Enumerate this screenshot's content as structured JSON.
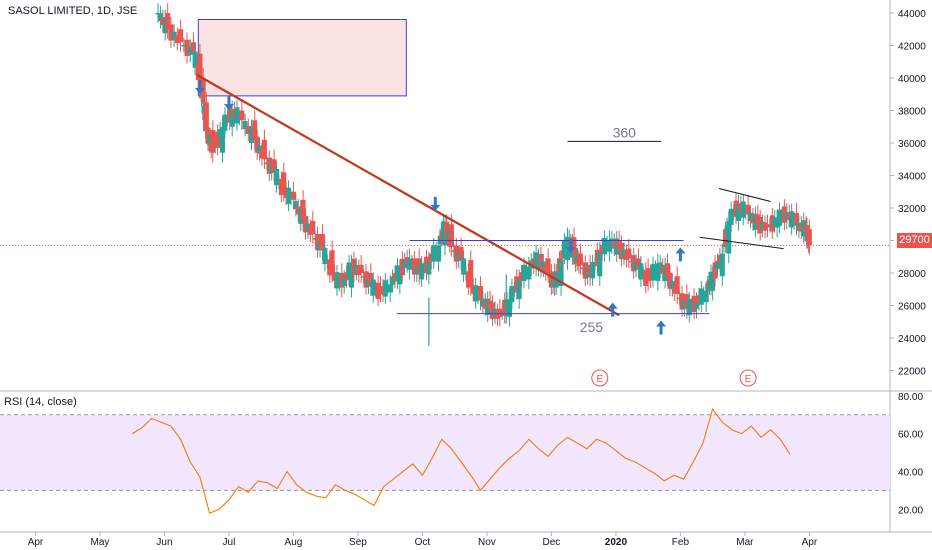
{
  "chart_title": "SASOL LIMITED, 1D, JSE",
  "rsi_title": "RSI (14, close)",
  "last_price_label": "29700",
  "annotations": {
    "target_high": "360",
    "support_low": "255",
    "earnings_marker": "E"
  },
  "colors": {
    "up": "#26a69a",
    "down": "#ef5350",
    "trendline": "#c0391b",
    "level_line": "#3f3fd6",
    "arrow": "#2f78c4",
    "rsi_line": "#f57c00",
    "rsi_band": "#f3e6ff",
    "zone_fill": "#fbe3e3"
  },
  "chart_data": [
    {
      "type": "candlestick",
      "title": "SASOL LIMITED, 1D, JSE",
      "x_ticks": [
        "Apr",
        "May",
        "Jun",
        "Jul",
        "Aug",
        "Sep",
        "Oct",
        "Nov",
        "Dec",
        "2020",
        "Feb",
        "Mar",
        "Apr"
      ],
      "y_ticks": [
        22000,
        24000,
        26000,
        28000,
        30000,
        32000,
        34000,
        36000,
        38000,
        40000,
        42000,
        44000
      ],
      "ylim": [
        20800,
        44800
      ],
      "last_price": 29700,
      "price_path": [
        [
          3.8,
          44000
        ],
        [
          4.1,
          43000
        ],
        [
          4.5,
          42200
        ],
        [
          4.9,
          41500
        ],
        [
          5.1,
          40000
        ],
        [
          5.2,
          38500
        ],
        [
          5.3,
          36800
        ],
        [
          5.5,
          35400
        ],
        [
          5.8,
          37000
        ],
        [
          6.1,
          38000
        ],
        [
          6.4,
          37400
        ],
        [
          6.8,
          36200
        ],
        [
          7.1,
          35000
        ],
        [
          7.4,
          34200
        ],
        [
          7.7,
          33000
        ],
        [
          8.0,
          32500
        ],
        [
          8.3,
          31200
        ],
        [
          8.6,
          30400
        ],
        [
          8.9,
          29400
        ],
        [
          9.2,
          28000
        ],
        [
          9.5,
          27100
        ],
        [
          9.8,
          28500
        ],
        [
          10.1,
          28000
        ],
        [
          10.4,
          27200
        ],
        [
          10.7,
          26800
        ],
        [
          11.0,
          27300
        ],
        [
          11.3,
          28200
        ],
        [
          11.6,
          28900
        ],
        [
          11.9,
          27900
        ],
        [
          12.2,
          28700
        ],
        [
          12.5,
          29700
        ],
        [
          12.7,
          31000
        ],
        [
          12.9,
          29600
        ],
        [
          13.2,
          28800
        ],
        [
          13.5,
          27200
        ],
        [
          13.8,
          26300
        ],
        [
          14.1,
          25800
        ],
        [
          14.4,
          25300
        ],
        [
          14.7,
          26400
        ],
        [
          15.0,
          27600
        ],
        [
          15.3,
          28400
        ],
        [
          15.6,
          28900
        ],
        [
          15.9,
          28000
        ],
        [
          16.1,
          27200
        ],
        [
          16.3,
          28800
        ],
        [
          16.5,
          30200
        ],
        [
          16.7,
          29200
        ],
        [
          16.9,
          28500
        ],
        [
          17.2,
          27800
        ],
        [
          17.5,
          29300
        ],
        [
          17.8,
          30000
        ],
        [
          18.1,
          29500
        ],
        [
          18.4,
          28900
        ],
        [
          18.7,
          28300
        ],
        [
          19.0,
          27500
        ],
        [
          19.3,
          28600
        ],
        [
          19.6,
          27800
        ],
        [
          19.9,
          26700
        ],
        [
          20.2,
          25800
        ],
        [
          20.5,
          26200
        ],
        [
          20.8,
          26900
        ],
        [
          21.0,
          27800
        ],
        [
          21.3,
          29200
        ],
        [
          21.5,
          31200
        ],
        [
          21.8,
          32200
        ],
        [
          22.1,
          31600
        ],
        [
          22.4,
          31000
        ],
        [
          22.7,
          30800
        ],
        [
          23.0,
          31300
        ],
        [
          23.3,
          31700
        ],
        [
          23.6,
          30900
        ],
        [
          23.9,
          30700
        ],
        [
          24.0,
          29700
        ]
      ],
      "lows": [
        {
          "x": 12.2,
          "value": 23500
        },
        {
          "x": 14.6,
          "value": 24900
        }
      ],
      "annotations": [
        {
          "kind": "zone",
          "x": [
            5.05,
            11.5
          ],
          "y": [
            38900,
            43600
          ]
        },
        {
          "kind": "trendline",
          "from": [
            5.0,
            40200
          ],
          "to": [
            18.1,
            25400
          ]
        },
        {
          "kind": "level",
          "x": [
            11.6,
            20.1
          ],
          "y": 30000
        },
        {
          "kind": "level",
          "x": [
            11.2,
            20.9
          ],
          "y": 25500
        },
        {
          "kind": "level",
          "x": [
            16.5,
            19.4
          ],
          "y": 36100,
          "label": "360"
        },
        {
          "kind": "label",
          "x": [
            15.0,
            17.0
          ],
          "y": 25100,
          "text": "255"
        },
        {
          "kind": "channel",
          "from": [
            21.2,
            33200
          ],
          "to": [
            22.8,
            32400
          ]
        },
        {
          "kind": "channel",
          "from": [
            20.6,
            30200
          ],
          "to": [
            23.2,
            29500
          ]
        },
        {
          "kind": "last_price_line",
          "y": 29700
        }
      ],
      "markers": [
        {
          "type": "down-arrow",
          "x": 5.1,
          "y": 38900
        },
        {
          "type": "down-arrow",
          "x": 6.0,
          "y": 37900
        },
        {
          "type": "down-arrow",
          "x": 12.4,
          "y": 31700
        },
        {
          "type": "down-arrow",
          "x": 16.6,
          "y": 29100
        },
        {
          "type": "up-arrow",
          "x": 17.9,
          "y": 26300
        },
        {
          "type": "up-arrow",
          "x": 19.4,
          "y": 25200
        },
        {
          "type": "up-arrow",
          "x": 20.0,
          "y": 29700
        },
        {
          "type": "earnings",
          "x": 17.5
        },
        {
          "type": "earnings",
          "x": 22.1
        }
      ]
    },
    {
      "type": "line",
      "title": "RSI (14, close)",
      "y_ticks": [
        20,
        40,
        60,
        80
      ],
      "ylim": [
        8,
        82
      ],
      "bands": [
        30,
        70
      ],
      "series": [
        {
          "values": [
            [
              3.0,
              60
            ],
            [
              3.3,
              63
            ],
            [
              3.6,
              68
            ],
            [
              3.9,
              66
            ],
            [
              4.2,
              64
            ],
            [
              4.5,
              57
            ],
            [
              4.8,
              45
            ],
            [
              5.1,
              37
            ],
            [
              5.4,
              18
            ],
            [
              5.7,
              20
            ],
            [
              6.0,
              25
            ],
            [
              6.3,
              32
            ],
            [
              6.6,
              29
            ],
            [
              6.9,
              35
            ],
            [
              7.2,
              34
            ],
            [
              7.5,
              31
            ],
            [
              7.8,
              40
            ],
            [
              8.1,
              33
            ],
            [
              8.4,
              29
            ],
            [
              8.7,
              27
            ],
            [
              9.0,
              26
            ],
            [
              9.3,
              33
            ],
            [
              9.6,
              30
            ],
            [
              9.9,
              28
            ],
            [
              10.2,
              25
            ],
            [
              10.5,
              22
            ],
            [
              10.8,
              32
            ],
            [
              11.1,
              36
            ],
            [
              11.4,
              40
            ],
            [
              11.7,
              44
            ],
            [
              12.0,
              38
            ],
            [
              12.3,
              47
            ],
            [
              12.6,
              57
            ],
            [
              12.9,
              52
            ],
            [
              13.2,
              45
            ],
            [
              13.5,
              38
            ],
            [
              13.8,
              30
            ],
            [
              14.1,
              36
            ],
            [
              14.4,
              42
            ],
            [
              14.7,
              47
            ],
            [
              15.0,
              51
            ],
            [
              15.3,
              57
            ],
            [
              15.6,
              52
            ],
            [
              15.9,
              48
            ],
            [
              16.2,
              54
            ],
            [
              16.5,
              58
            ],
            [
              16.8,
              55
            ],
            [
              17.1,
              52
            ],
            [
              17.4,
              57
            ],
            [
              17.7,
              55
            ],
            [
              18.0,
              51
            ],
            [
              18.3,
              47
            ],
            [
              18.6,
              45
            ],
            [
              18.9,
              42
            ],
            [
              19.2,
              39
            ],
            [
              19.5,
              35
            ],
            [
              19.8,
              38
            ],
            [
              20.1,
              36
            ],
            [
              20.4,
              45
            ],
            [
              20.7,
              55
            ],
            [
              21.0,
              73
            ],
            [
              21.3,
              66
            ],
            [
              21.6,
              62
            ],
            [
              21.9,
              60
            ],
            [
              22.2,
              64
            ],
            [
              22.5,
              58
            ],
            [
              22.8,
              62
            ],
            [
              23.1,
              57
            ],
            [
              23.4,
              49
            ]
          ]
        }
      ]
    }
  ]
}
